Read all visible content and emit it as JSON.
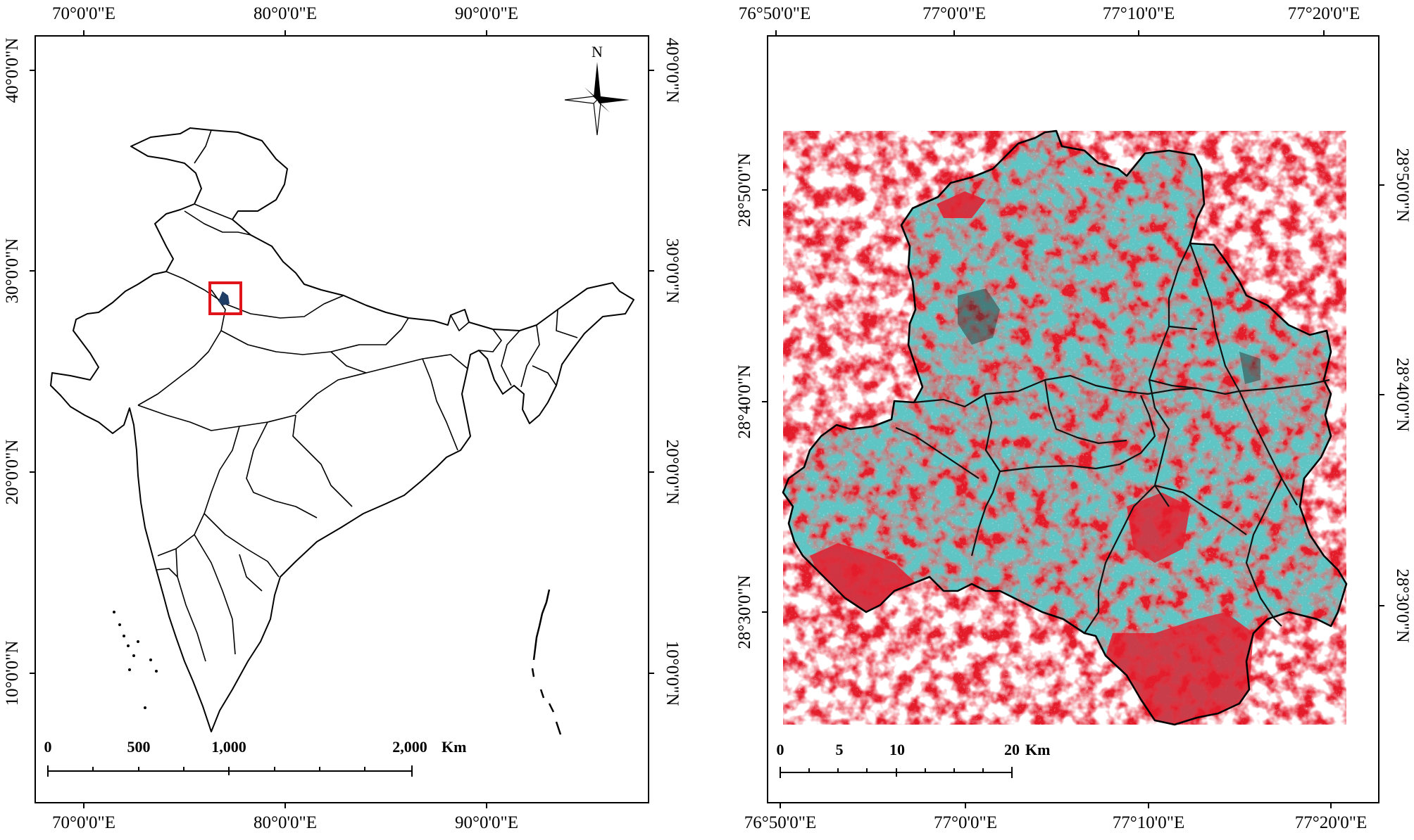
{
  "left_map": {
    "top_lon_ticks": [
      "70°0'0\"E",
      "80°0'0\"E",
      "90°0'0\"E"
    ],
    "bottom_lon_ticks": [
      "70°0'0\"E",
      "80°0'0\"E",
      "90°0'0\"E"
    ],
    "left_lat_ticks": [
      "40°0'0\"N",
      "30°0'0\"N",
      "20°0'0\"N",
      "10°0'0\"N"
    ],
    "right_lat_ticks": [
      "40°0'0\"N",
      "30°0'0\"N",
      "20°0'0\"N",
      "10°0'0\"N"
    ],
    "north_label": "N",
    "scale_labels": [
      "0",
      "500",
      "1,000",
      "2,000"
    ],
    "scale_unit": "Km",
    "highlight_color": "#e0141b"
  },
  "right_map": {
    "top_lon_ticks": [
      "76°50'0\"E",
      "77°0'0\"E",
      "77°10'0\"E",
      "77°20'0\"E"
    ],
    "bottom_lon_ticks": [
      "76°50'0\"E",
      "77°0'0\"E",
      "77°10'0\"E",
      "77°20'0\"E"
    ],
    "left_lat_ticks": [
      "28°50'0\"N",
      "28°40'0\"N",
      "28°30'0\"N"
    ],
    "right_lat_ticks": [
      "28°50'0\"N",
      "28°40'0\"N",
      "28°30'0\"N"
    ],
    "scale_labels": [
      "0",
      "5",
      "10",
      "20"
    ],
    "scale_unit": "Km",
    "image_colors": {
      "urban": "#5fc4c4",
      "vegetation": "#e41b2c",
      "bright": "#d8f4f2"
    }
  }
}
